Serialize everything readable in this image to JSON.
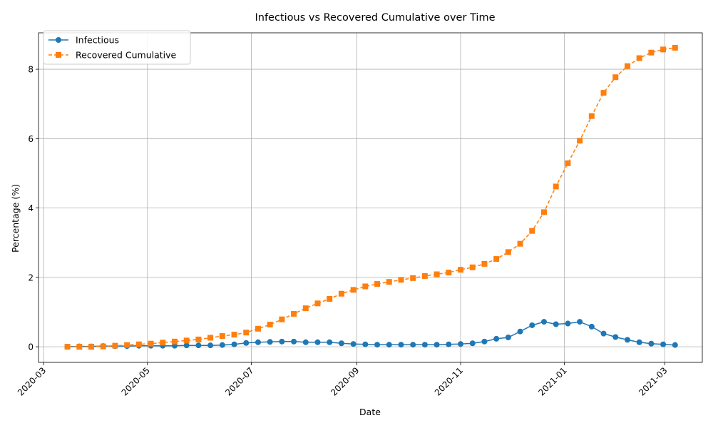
{
  "chart_data": {
    "type": "line",
    "title": "Infectious vs Recovered Cumulative over Time",
    "xlabel": "Date",
    "ylabel": "Percentage (%)",
    "x_ticks": [
      "2020-03",
      "2020-05",
      "2020-07",
      "2020-09",
      "2020-11",
      "2021-01",
      "2021-03"
    ],
    "y_ticks": [
      "0",
      "2",
      "4",
      "6",
      "8"
    ],
    "ylim": [
      -0.45,
      9.05
    ],
    "xlim": [
      "2020-02-27",
      "2021-03-23"
    ],
    "grid": true,
    "legend_position": "upper-left",
    "dates": [
      "2020-03-15",
      "2020-03-22",
      "2020-03-29",
      "2020-04-05",
      "2020-04-12",
      "2020-04-19",
      "2020-04-26",
      "2020-05-03",
      "2020-05-10",
      "2020-05-17",
      "2020-05-24",
      "2020-05-31",
      "2020-06-07",
      "2020-06-14",
      "2020-06-21",
      "2020-06-28",
      "2020-07-05",
      "2020-07-12",
      "2020-07-19",
      "2020-07-26",
      "2020-08-02",
      "2020-08-09",
      "2020-08-16",
      "2020-08-23",
      "2020-08-30",
      "2020-09-06",
      "2020-09-13",
      "2020-09-20",
      "2020-09-27",
      "2020-10-04",
      "2020-10-11",
      "2020-10-18",
      "2020-10-25",
      "2020-11-01",
      "2020-11-08",
      "2020-11-15",
      "2020-11-22",
      "2020-11-29",
      "2020-12-06",
      "2020-12-13",
      "2020-12-20",
      "2020-12-27",
      "2021-01-03",
      "2021-01-10",
      "2021-01-17",
      "2021-01-24",
      "2021-01-31",
      "2021-02-07",
      "2021-02-14",
      "2021-02-21",
      "2021-02-28",
      "2021-03-07"
    ],
    "series": [
      {
        "name": "Infectious",
        "color": "#1f77b4",
        "marker": "circle",
        "linestyle": "solid",
        "values": [
          0.0,
          0.01,
          0.01,
          0.02,
          0.02,
          0.02,
          0.03,
          0.03,
          0.03,
          0.03,
          0.04,
          0.04,
          0.04,
          0.05,
          0.07,
          0.11,
          0.13,
          0.14,
          0.15,
          0.15,
          0.13,
          0.13,
          0.13,
          0.1,
          0.08,
          0.07,
          0.06,
          0.06,
          0.06,
          0.06,
          0.06,
          0.06,
          0.07,
          0.08,
          0.1,
          0.15,
          0.23,
          0.27,
          0.44,
          0.62,
          0.72,
          0.65,
          0.67,
          0.72,
          0.58,
          0.38,
          0.28,
          0.2,
          0.13,
          0.09,
          0.07,
          0.05
        ]
      },
      {
        "name": "Recovered Cumulative",
        "color": "#ff7f0e",
        "marker": "square",
        "linestyle": "dashed",
        "values": [
          0.0,
          0.0,
          0.0,
          0.01,
          0.03,
          0.05,
          0.07,
          0.09,
          0.12,
          0.15,
          0.18,
          0.21,
          0.26,
          0.31,
          0.35,
          0.41,
          0.52,
          0.64,
          0.79,
          0.95,
          1.11,
          1.25,
          1.38,
          1.53,
          1.64,
          1.74,
          1.81,
          1.87,
          1.93,
          1.98,
          2.04,
          2.09,
          2.14,
          2.22,
          2.29,
          2.39,
          2.53,
          2.73,
          2.97,
          3.34,
          3.88,
          4.62,
          5.29,
          5.94,
          6.65,
          7.32,
          7.77,
          8.09,
          8.32,
          8.48,
          8.57,
          8.62
        ]
      }
    ]
  }
}
